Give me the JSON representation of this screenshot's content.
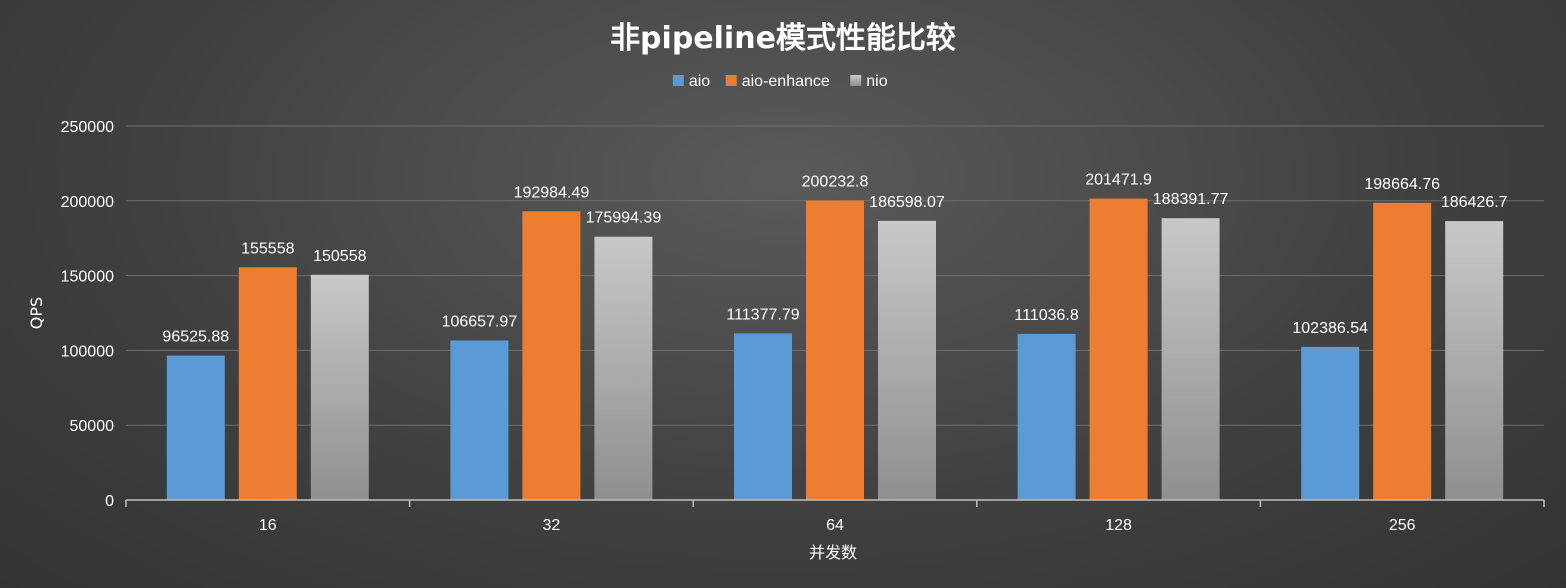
{
  "chart_data": {
    "type": "bar",
    "title": "非pipeline模式性能比较",
    "xlabel": "并发数",
    "ylabel": "QPS",
    "categories": [
      "16",
      "32",
      "64",
      "128",
      "256"
    ],
    "series": [
      {
        "name": "aio",
        "color": "#5b9bd5",
        "values": [
          96525.88,
          106657.97,
          111377.79,
          111036.8,
          102386.54
        ]
      },
      {
        "name": "aio-enhance",
        "color": "#ed7d31",
        "values": [
          155558,
          192984.49,
          200232.8,
          201471.9,
          198664.76
        ]
      },
      {
        "name": "nio",
        "color": "#a5a5a5",
        "values": [
          150558,
          175994.39,
          186598.07,
          188391.77,
          186426.7
        ]
      }
    ],
    "data_labels": [
      [
        "96525.88",
        "106657.97",
        "111377.79",
        "111036.8",
        "102386.54"
      ],
      [
        "155558",
        "192984.49",
        "200232.8",
        "201471.9",
        "198664.76"
      ],
      [
        "150558",
        "175994.39",
        "186598.07",
        "188391.77",
        "186426.7"
      ]
    ],
    "yticks": [
      "0",
      "50000",
      "100000",
      "150000",
      "200000",
      "250000"
    ],
    "ylim": [
      0,
      250000
    ],
    "grid": true,
    "legend_position": "top-center"
  }
}
